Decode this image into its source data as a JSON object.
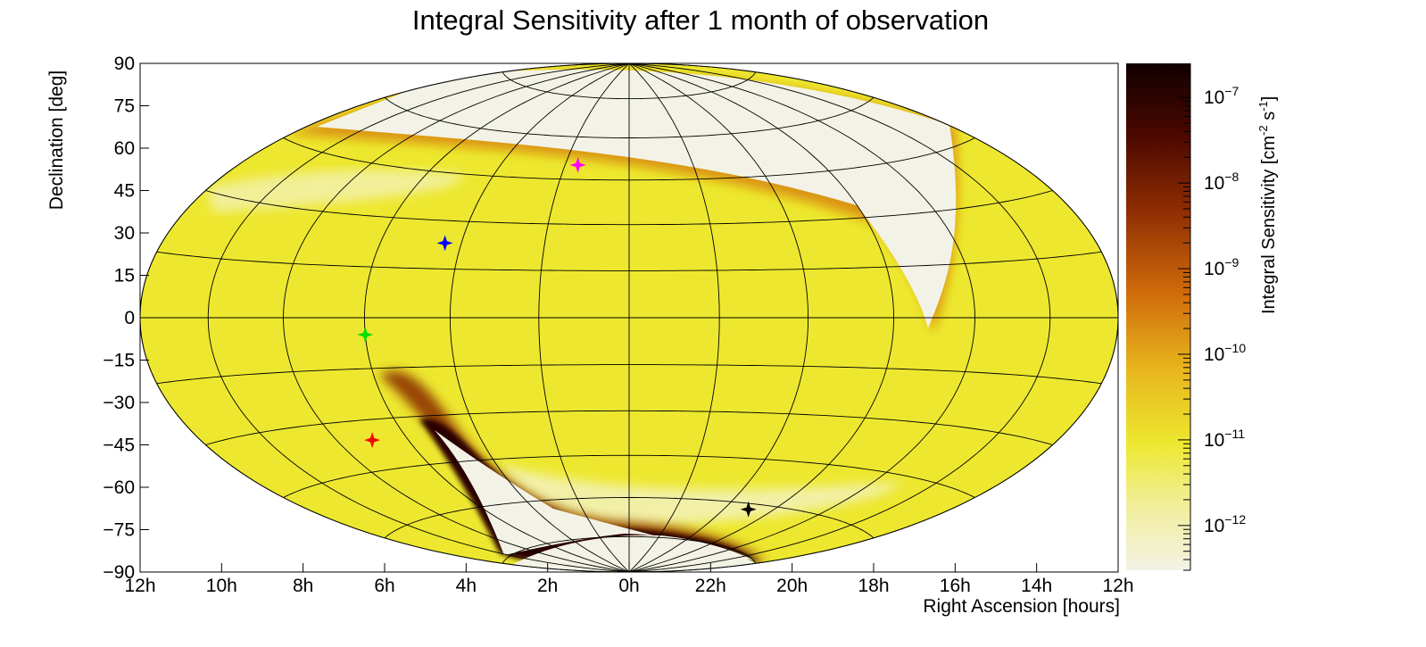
{
  "chart_data": {
    "type": "heatmap",
    "projection": "hammer-aitoff",
    "title": "Integral Sensitivity after 1 month of observation",
    "xlabel": "Right Ascension [hours]",
    "ylabel": "Declination [deg]",
    "xlim_hours": [
      12,
      -12
    ],
    "ylim": [
      -90,
      90
    ],
    "x_ticks": [
      "12h",
      "10h",
      "8h",
      "6h",
      "4h",
      "2h",
      "0h",
      "22h",
      "20h",
      "18h",
      "16h",
      "14h",
      "12h"
    ],
    "y_ticks": [
      "90",
      "75",
      "60",
      "45",
      "30",
      "15",
      "0",
      "−15",
      "−30",
      "−45",
      "−60",
      "−75",
      "−90"
    ],
    "grid": true,
    "colorbar": {
      "label_main": "Integral Sensitivity [cm",
      "label_exp1": "-2",
      "label_mid": " s",
      "label_exp2": "-1",
      "label_end": "]",
      "scale": "log",
      "range": [
        3e-13,
        2.5e-07
      ],
      "tick_base": "10",
      "tick_exponents": [
        "-7",
        "-8",
        "-9",
        "-10",
        "-11",
        "-12"
      ]
    },
    "markers": [
      {
        "ra_hours": 1.6,
        "dec": 50,
        "color": "#ff00ff"
      },
      {
        "ra_hours": 4.4,
        "dec": 23,
        "color": "#0000ff"
      },
      {
        "ra_hours": 6.0,
        "dec": -5,
        "color": "#00dd00"
      },
      {
        "ra_hours": 7.0,
        "dec": -36,
        "color": "#ff0000"
      },
      {
        "ra_hours": 19.0,
        "dec": -62,
        "color": "#000000"
      }
    ],
    "description_colors": {
      "background": "#f3f2e6",
      "yellow": "#ede82f",
      "orange": "#cf6a0b",
      "dark": "#160200"
    }
  }
}
